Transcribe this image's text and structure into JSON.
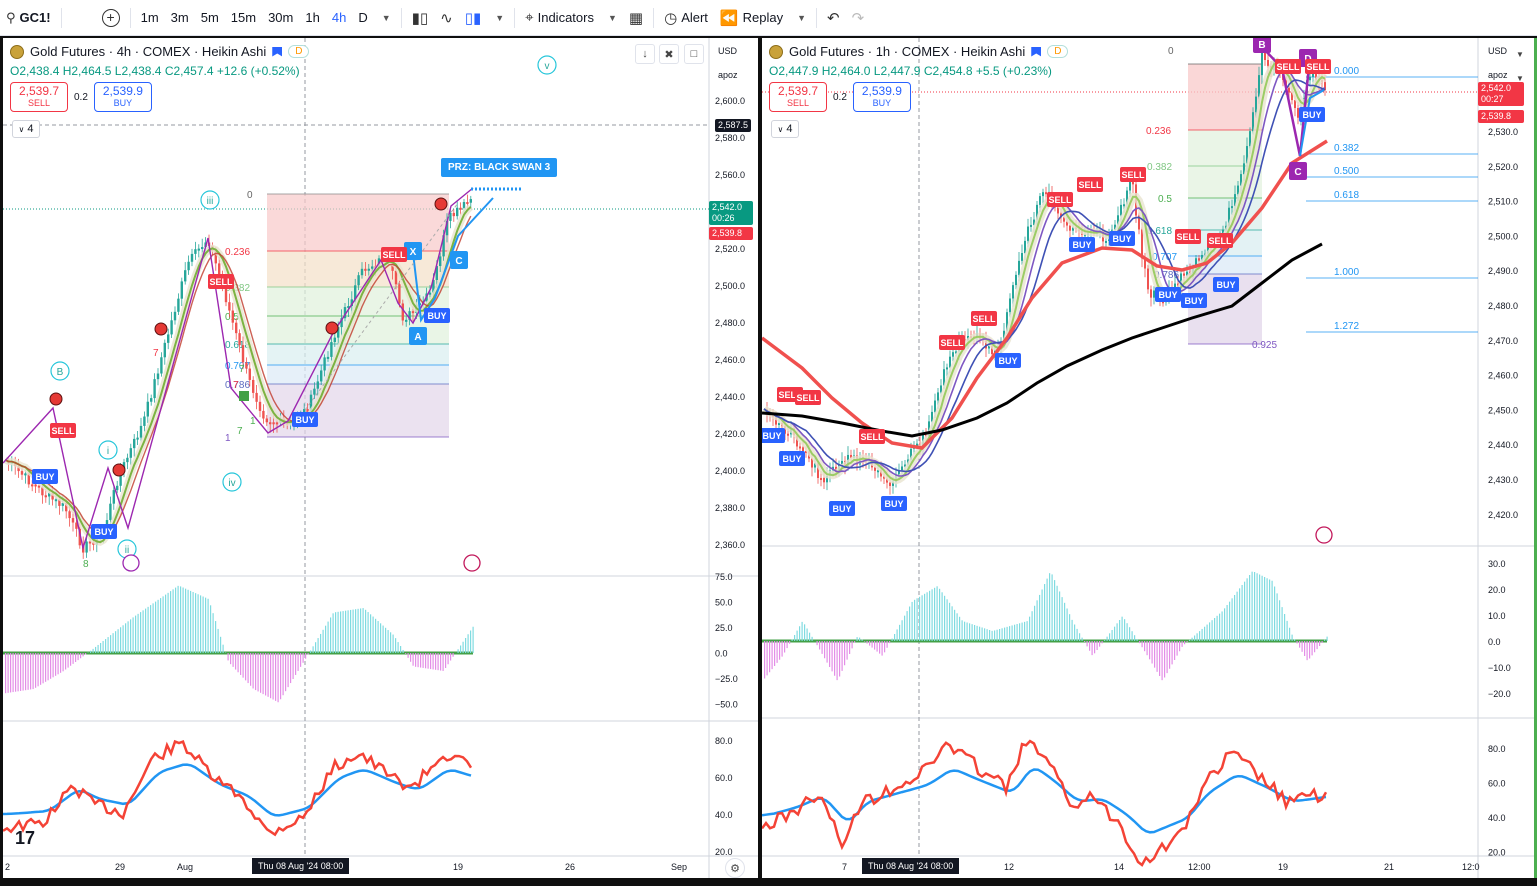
{
  "toolbar": {
    "symbol": "GC1!",
    "intervals": [
      "1m",
      "3m",
      "5m",
      "15m",
      "30m",
      "1h",
      "4h",
      "D"
    ],
    "active_interval": "4h",
    "indicators_label": "Indicators",
    "alert_label": "Alert",
    "replay_label": "Replay"
  },
  "left": {
    "title": "Gold Futures · 4h · COMEX · Heikin Ashi",
    "badge": "D",
    "ohlc": {
      "o": "O2,438.4",
      "h": "H2,464.5",
      "l": "L2,438.4",
      "c": "C2,457.4",
      "chg": "+12.6 (+0.52%)"
    },
    "sell": {
      "price": "2,539.7",
      "label": "SELL"
    },
    "qty": "0.2",
    "buy": {
      "price": "2,539.9",
      "label": "BUY"
    },
    "collapse_count": "4",
    "currency": "USD",
    "apoz": "apoz",
    "price_ticks": [
      "2,600.0",
      "2,580.0",
      "2,560.0",
      "2,540.0",
      "2,520.0",
      "2,500.0",
      "2,480.0",
      "2,460.0",
      "2,440.0",
      "2,420.0",
      "2,400.0",
      "2,380.0",
      "2,360.0"
    ],
    "crosshair_price": "2,587.5",
    "last_price": "2,542.0",
    "countdown": "00:26",
    "ask_price": "2,539.8",
    "osc_ticks": [
      "75.0",
      "50.0",
      "25.0",
      "0.0",
      "−25.0",
      "−50.0"
    ],
    "rsi_ticks": [
      "80.0",
      "60.0",
      "40.0",
      "20.0"
    ],
    "time_ticks": [
      "2",
      "29",
      "Aug",
      "19",
      "26",
      "Sep"
    ],
    "crosshair_time": "Thu 08 Aug '24   08:00",
    "prz_label": "PRZ: BLACK SWAN 3",
    "fib": [
      "0",
      "0.236",
      "0.382",
      "0.5",
      "0.618",
      "0.707",
      "0.786",
      "1"
    ],
    "wave_labels": [
      "B",
      "i",
      "ii",
      "iii",
      "iv",
      "v"
    ],
    "harmonic_labels": [
      "X",
      "A",
      "C"
    ],
    "signals_buy": [
      "BUY",
      "BUY",
      "BUY",
      "BUY"
    ],
    "signals_sell": [
      "SELL",
      "SELL",
      "SELL"
    ],
    "count_labels": [
      "7",
      "7",
      "1",
      "7",
      "8",
      "7"
    ]
  },
  "right": {
    "title": "Gold Futures · 1h · COMEX · Heikin Ashi",
    "badge": "D",
    "ohlc": {
      "o": "O2,447.9",
      "h": "H2,464.0",
      "l": "L2,447.9",
      "c": "C2,454.8",
      "chg": "+5.5 (+0.23%)"
    },
    "sell": {
      "price": "2,539.7",
      "label": "SELL"
    },
    "qty": "0.2",
    "buy": {
      "price": "2,539.9",
      "label": "BUY"
    },
    "collapse_count": "4",
    "currency": "USD",
    "apoz": "apoz",
    "price_ticks": [
      "2,530.0",
      "2,520.0",
      "2,510.0",
      "2,500.0",
      "2,490.0",
      "2,480.0",
      "2,470.0",
      "2,460.0",
      "2,450.0",
      "2,440.0",
      "2,430.0",
      "2,420.0"
    ],
    "last_price": "2,542.0",
    "countdown": "00:27",
    "ask_price": "2,539.8",
    "osc_ticks": [
      "30.0",
      "20.0",
      "10.0",
      "0.0",
      "−10.0",
      "−20.0"
    ],
    "rsi_ticks": [
      "80.0",
      "60.0",
      "40.0",
      "20.0"
    ],
    "time_ticks": [
      "7",
      "12",
      "14",
      "12:00",
      "19",
      "21",
      "12:0"
    ],
    "crosshair_time": "Thu 08 Aug '24   08:00",
    "fib_left": [
      "0",
      "0.236",
      "0.382",
      "0.5",
      "0.618",
      "0.707",
      "0.786",
      "0.925"
    ],
    "fib_right": [
      "0.000",
      "0.382",
      "0.500",
      "0.618",
      "1.000",
      "1.272"
    ],
    "harmonic_labels": [
      "B",
      "D",
      "C"
    ],
    "signals_buy": [
      "BUY",
      "BUY",
      "BUY",
      "BUY",
      "BUY",
      "BUY",
      "BUY",
      "BUY",
      "BUY",
      "BUY"
    ],
    "signals_sell": [
      "SELL",
      "SELL",
      "SELL",
      "SELL",
      "SELL",
      "SELL",
      "SELL",
      "SELL",
      "SELL",
      "SELL"
    ]
  },
  "colors": {
    "up": "#26a69a",
    "down": "#ef5350",
    "accent": "#2962ff",
    "purple": "#9c27b0",
    "ma_red": "#f0504e",
    "ma_black": "#000000",
    "cyan_hist": "#7fdbe0",
    "magenta_hist": "#e38ee7"
  }
}
